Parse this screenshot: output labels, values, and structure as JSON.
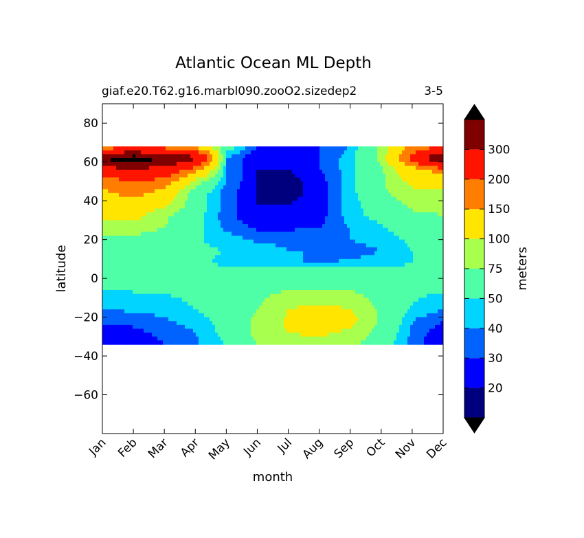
{
  "chart_data": {
    "type": "heatmap",
    "title": "Atlantic Ocean ML Depth",
    "subtitle_left": "giaf.e20.T62.g16.marbl090.zooO2.sizedep2",
    "subtitle_right": "3-5",
    "xlabel": "month",
    "ylabel": "latitude",
    "x_categories": [
      "Jan",
      "Feb",
      "Mar",
      "Apr",
      "May",
      "Jun",
      "Jul",
      "Aug",
      "Sep",
      "Oct",
      "Nov",
      "Dec"
    ],
    "xlim": [
      0,
      11
    ],
    "ylim": [
      -80,
      90
    ],
    "y_ticks": [
      80,
      60,
      40,
      20,
      0,
      -20,
      -40,
      -60
    ],
    "y_tick_labels": [
      "80",
      "60",
      "40",
      "20",
      "0",
      "−20",
      "−40",
      "−60"
    ],
    "data_lat_range": [
      -34,
      68
    ],
    "colorbar": {
      "label": "meters",
      "levels": [
        10,
        20,
        30,
        40,
        50,
        75,
        100,
        150,
        200,
        300,
        400
      ],
      "tick_values": [
        20,
        30,
        40,
        50,
        75,
        100,
        150,
        200,
        300
      ],
      "tick_labels": [
        "20",
        "30",
        "40",
        "50",
        "75",
        "100",
        "150",
        "200",
        "300"
      ],
      "colors": [
        "#00007f",
        "#0000ff",
        "#0063ff",
        "#00d4ff",
        "#4effa8",
        "#a8ff4e",
        "#ffe500",
        "#ff7d00",
        "#ff1400",
        "#7f0000"
      ],
      "extend_colors": [
        "#000000",
        "#000000"
      ]
    },
    "latitudes": [
      68,
      62,
      56,
      50,
      44,
      38,
      32,
      26,
      20,
      14,
      8,
      2,
      -4,
      -10,
      -16,
      -22,
      -28,
      -34
    ],
    "values": [
      [
        150,
        160,
        160,
        130,
        60,
        30,
        20,
        30,
        40,
        80,
        160,
        180
      ],
      [
        420,
        450,
        410,
        320,
        40,
        20,
        20,
        30,
        45,
        80,
        220,
        420
      ],
      [
        260,
        290,
        260,
        170,
        40,
        20,
        20,
        30,
        45,
        70,
        130,
        170
      ],
      [
        170,
        200,
        180,
        90,
        40,
        20,
        15,
        25,
        45,
        70,
        110,
        120
      ],
      [
        140,
        170,
        130,
        60,
        35,
        20,
        15,
        25,
        45,
        70,
        90,
        90
      ],
      [
        110,
        120,
        105,
        60,
        35,
        20,
        20,
        25,
        45,
        60,
        80,
        80
      ],
      [
        105,
        110,
        80,
        55,
        35,
        20,
        20,
        25,
        45,
        55,
        70,
        75
      ],
      [
        90,
        90,
        75,
        55,
        38,
        28,
        28,
        30,
        40,
        48,
        60,
        65
      ],
      [
        70,
        65,
        60,
        52,
        45,
        38,
        38,
        38,
        40,
        45,
        52,
        55
      ],
      [
        60,
        60,
        55,
        52,
        50,
        45,
        40,
        40,
        35,
        40,
        50,
        55
      ],
      [
        55,
        55,
        55,
        52,
        48,
        45,
        42,
        38,
        42,
        45,
        50,
        55
      ],
      [
        58,
        58,
        58,
        56,
        54,
        55,
        60,
        62,
        60,
        58,
        55,
        55
      ],
      [
        55,
        55,
        55,
        55,
        58,
        65,
        70,
        72,
        70,
        60,
        55,
        55
      ],
      [
        40,
        45,
        48,
        52,
        58,
        70,
        85,
        90,
        85,
        65,
        52,
        45
      ],
      [
        40,
        42,
        45,
        50,
        58,
        75,
        100,
        110,
        100,
        70,
        48,
        40
      ],
      [
        35,
        32,
        38,
        45,
        55,
        80,
        105,
        120,
        110,
        70,
        40,
        30
      ],
      [
        22,
        28,
        32,
        40,
        55,
        80,
        100,
        105,
        95,
        65,
        38,
        22
      ],
      [
        20,
        25,
        30,
        38,
        50,
        75,
        90,
        90,
        80,
        60,
        35,
        20
      ]
    ]
  }
}
